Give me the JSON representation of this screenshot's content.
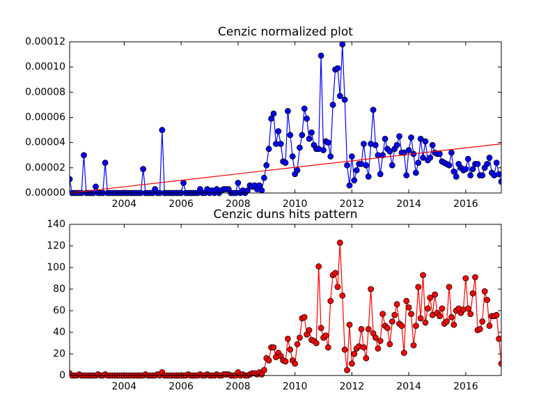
{
  "chart_data": [
    {
      "type": "line",
      "title": "Cenzic normalized plot",
      "x": [
        2002.083,
        2002.167,
        2002.25,
        2002.333,
        2002.417,
        2002.5,
        2002.583,
        2002.667,
        2002.75,
        2002.833,
        2002.917,
        2003,
        2003.083,
        2003.167,
        2003.25,
        2003.333,
        2003.417,
        2003.5,
        2003.583,
        2003.667,
        2003.75,
        2003.833,
        2003.917,
        2004,
        2004.083,
        2004.167,
        2004.25,
        2004.333,
        2004.417,
        2004.5,
        2004.583,
        2004.667,
        2004.75,
        2004.833,
        2004.917,
        2005,
        2005.083,
        2005.167,
        2005.25,
        2005.333,
        2005.417,
        2005.5,
        2005.583,
        2005.667,
        2005.75,
        2005.833,
        2005.917,
        2006,
        2006.083,
        2006.167,
        2006.25,
        2006.333,
        2006.417,
        2006.5,
        2006.583,
        2006.667,
        2006.75,
        2006.833,
        2006.917,
        2007,
        2007.083,
        2007.167,
        2007.25,
        2007.333,
        2007.417,
        2007.5,
        2007.583,
        2007.667,
        2007.75,
        2007.833,
        2007.917,
        2008,
        2008.083,
        2008.167,
        2008.25,
        2008.333,
        2008.417,
        2008.5,
        2008.583,
        2008.667,
        2008.75,
        2008.833,
        2008.917,
        2009,
        2009.083,
        2009.167,
        2009.25,
        2009.333,
        2009.417,
        2009.5,
        2009.583,
        2009.667,
        2009.75,
        2009.833,
        2009.917,
        2010,
        2010.083,
        2010.167,
        2010.25,
        2010.333,
        2010.417,
        2010.5,
        2010.583,
        2010.667,
        2010.75,
        2010.833,
        2010.917,
        2011,
        2011.083,
        2011.167,
        2011.25,
        2011.333,
        2011.417,
        2011.5,
        2011.583,
        2011.667,
        2011.75,
        2011.833,
        2011.917,
        2012,
        2012.083,
        2012.167,
        2012.25,
        2012.333,
        2012.417,
        2012.5,
        2012.583,
        2012.667,
        2012.75,
        2012.833,
        2012.917,
        2013,
        2013.083,
        2013.167,
        2013.25,
        2013.333,
        2013.417,
        2013.5,
        2013.583,
        2013.667,
        2013.75,
        2013.833,
        2013.917,
        2014,
        2014.083,
        2014.167,
        2014.25,
        2014.333,
        2014.417,
        2014.5,
        2014.583,
        2014.667,
        2014.75,
        2014.833,
        2014.917,
        2015,
        2015.083,
        2015.167,
        2015.25,
        2015.333,
        2015.417,
        2015.5,
        2015.583,
        2015.667,
        2015.75,
        2015.833,
        2015.917,
        2016,
        2016.083,
        2016.167,
        2016.25,
        2016.333,
        2016.417,
        2016.5,
        2016.583,
        2016.667,
        2016.75,
        2016.833,
        2016.917,
        2017,
        2017.083,
        2017.167,
        2017.25
      ],
      "series": [
        {
          "color": "#0000ff",
          "values": [
            1.1e-05,
            0,
            0,
            0,
            0,
            0,
            3e-05,
            0,
            0,
            0,
            0,
            5e-06,
            0,
            0,
            0,
            2.4e-05,
            0,
            0,
            0,
            0,
            0,
            0,
            0,
            0,
            0,
            0,
            0,
            0,
            0,
            0,
            0,
            1.9e-05,
            0,
            0,
            0,
            0,
            3e-06,
            0,
            0,
            5e-05,
            0,
            0,
            0,
            0,
            0,
            0,
            0,
            0,
            8e-06,
            0,
            0,
            0,
            0,
            0,
            0,
            3e-06,
            0,
            0,
            3e-06,
            0,
            2e-06,
            0,
            3e-06,
            0,
            2e-06,
            3e-06,
            3e-06,
            3e-06,
            0,
            0,
            0,
            8e-06,
            0,
            2e-06,
            0,
            2e-06,
            6e-06,
            5e-06,
            6e-06,
            3e-06,
            6e-06,
            2e-06,
            1.2e-05,
            2.2e-05,
            3.5e-05,
            5.9e-05,
            6.3e-05,
            3.9e-05,
            4.9e-05,
            3.9e-05,
            2.5e-05,
            2.4e-05,
            6.5e-05,
            4.6e-05,
            2.9e-05,
            1.5e-05,
            1.8e-05,
            3.6e-05,
            4.6e-05,
            6.7e-05,
            5.9e-05,
            4.3e-05,
            4.8e-05,
            3.8e-05,
            3.5e-05,
            3.5e-05,
            0.000109,
            3.4e-05,
            4.1e-05,
            4e-05,
            2.9e-05,
            7e-05,
            9.8e-05,
            9.9e-05,
            7.7e-05,
            0.000118,
            7.4e-05,
            2.2e-05,
            6e-06,
            2.9e-05,
            1e-05,
            1.8e-05,
            2.3e-05,
            2.3e-05,
            3.9e-05,
            2.2e-05,
            1.3e-05,
            3.9e-05,
            6.6e-05,
            3.8e-05,
            3e-05,
            1.5e-05,
            3e-05,
            4.3e-05,
            3.5e-05,
            3.3e-05,
            2.2e-05,
            3.5e-05,
            3.8e-05,
            4.5e-05,
            3.2e-05,
            3.2e-05,
            1.4e-05,
            3.4e-05,
            4.4e-05,
            3.1e-05,
            1.6e-05,
            2.4e-05,
            4.3e-05,
            2.8e-05,
            4.1e-05,
            2.6e-05,
            2.8e-05,
            3.8e-05,
            3.2e-05,
            3.1e-05,
            3.1e-05,
            2.5e-05,
            2.4e-05,
            2.3e-05,
            2.2e-05,
            3.2e-05,
            1.7e-05,
            1.3e-05,
            2.3e-05,
            2e-05,
            1.8e-05,
            1.9e-05,
            2.7e-05,
            1.4e-05,
            1.9e-05,
            2.3e-05,
            2.3e-05,
            1.4e-05,
            1.4e-05,
            2e-05,
            2.3e-05,
            2.8e-05,
            1.6e-05,
            1.4e-05,
            2.4e-05,
            1.5e-05,
            9e-06
          ]
        }
      ],
      "trend": {
        "color": "#ff0000",
        "x": [
          2002.083,
          2017.25
        ],
        "values": [
          0,
          3.9e-05
        ]
      },
      "xlim": [
        2002.083,
        2017.25
      ],
      "xticks": [
        2004,
        2006,
        2008,
        2010,
        2012,
        2014,
        2016
      ],
      "ylim": [
        0,
        0.00012
      ],
      "yticks": [
        {
          "value": 0,
          "label": "0.00000"
        },
        {
          "value": 2e-05,
          "label": "0.00002"
        },
        {
          "value": 4e-05,
          "label": "0.00004"
        },
        {
          "value": 6e-05,
          "label": "0.00006"
        },
        {
          "value": 8e-05,
          "label": "0.00008"
        },
        {
          "value": 0.0001,
          "label": "0.00010"
        },
        {
          "value": 0.00012,
          "label": "0.00012"
        }
      ]
    },
    {
      "type": "line",
      "title": "Cenzic duns hits pattern",
      "x": [
        2002.083,
        2002.167,
        2002.25,
        2002.333,
        2002.417,
        2002.5,
        2002.583,
        2002.667,
        2002.75,
        2002.833,
        2002.917,
        2003,
        2003.083,
        2003.167,
        2003.25,
        2003.333,
        2003.417,
        2003.5,
        2003.583,
        2003.667,
        2003.75,
        2003.833,
        2003.917,
        2004,
        2004.083,
        2004.167,
        2004.25,
        2004.333,
        2004.417,
        2004.5,
        2004.583,
        2004.667,
        2004.75,
        2004.833,
        2004.917,
        2005,
        2005.083,
        2005.167,
        2005.25,
        2005.333,
        2005.417,
        2005.5,
        2005.583,
        2005.667,
        2005.75,
        2005.833,
        2005.917,
        2006,
        2006.083,
        2006.167,
        2006.25,
        2006.333,
        2006.417,
        2006.5,
        2006.583,
        2006.667,
        2006.75,
        2006.833,
        2006.917,
        2007,
        2007.083,
        2007.167,
        2007.25,
        2007.333,
        2007.417,
        2007.5,
        2007.583,
        2007.667,
        2007.75,
        2007.833,
        2007.917,
        2008,
        2008.083,
        2008.167,
        2008.25,
        2008.333,
        2008.417,
        2008.5,
        2008.583,
        2008.667,
        2008.75,
        2008.833,
        2008.917,
        2009,
        2009.083,
        2009.167,
        2009.25,
        2009.333,
        2009.417,
        2009.5,
        2009.583,
        2009.667,
        2009.75,
        2009.833,
        2009.917,
        2010,
        2010.083,
        2010.167,
        2010.25,
        2010.333,
        2010.417,
        2010.5,
        2010.583,
        2010.667,
        2010.75,
        2010.833,
        2010.917,
        2011,
        2011.083,
        2011.167,
        2011.25,
        2011.333,
        2011.417,
        2011.5,
        2011.583,
        2011.667,
        2011.75,
        2011.833,
        2011.917,
        2012,
        2012.083,
        2012.167,
        2012.25,
        2012.333,
        2012.417,
        2012.5,
        2012.583,
        2012.667,
        2012.75,
        2012.833,
        2012.917,
        2013,
        2013.083,
        2013.167,
        2013.25,
        2013.333,
        2013.417,
        2013.5,
        2013.583,
        2013.667,
        2013.75,
        2013.833,
        2013.917,
        2014,
        2014.083,
        2014.167,
        2014.25,
        2014.333,
        2014.417,
        2014.5,
        2014.583,
        2014.667,
        2014.75,
        2014.833,
        2014.917,
        2015,
        2015.083,
        2015.167,
        2015.25,
        2015.333,
        2015.417,
        2015.5,
        2015.583,
        2015.667,
        2015.75,
        2015.833,
        2015.917,
        2016,
        2016.083,
        2016.167,
        2016.25,
        2016.333,
        2016.417,
        2016.5,
        2016.583,
        2016.667,
        2016.75,
        2016.833,
        2016.917,
        2017,
        2017.083,
        2017.167,
        2017.25
      ],
      "series": [
        {
          "color": "#ff0000",
          "values": [
            2,
            0,
            0,
            0,
            1,
            0,
            0,
            0,
            0,
            0,
            0,
            0,
            1,
            0,
            0,
            1,
            0,
            0,
            0,
            0,
            0,
            0,
            0,
            0,
            0,
            0,
            0,
            0,
            0,
            0,
            0,
            0,
            1,
            0,
            0,
            0,
            0,
            1,
            0,
            3,
            0,
            0,
            0,
            0,
            0,
            0,
            0,
            0,
            0,
            0,
            1,
            0,
            0,
            0,
            0,
            1,
            0,
            0,
            1,
            0,
            0,
            0,
            1,
            0,
            0,
            1,
            1,
            1,
            0,
            0,
            0,
            3,
            0,
            1,
            0,
            0,
            1,
            2,
            2,
            1,
            3,
            1,
            5,
            16,
            14,
            26,
            26,
            17,
            21,
            18,
            14,
            13,
            34,
            24,
            14,
            11,
            29,
            35,
            53,
            54,
            38,
            42,
            33,
            32,
            30,
            101,
            44,
            35,
            37,
            26,
            69,
            93,
            95,
            82,
            123,
            74,
            24,
            5,
            47,
            11,
            20,
            25,
            27,
            43,
            26,
            16,
            43,
            80,
            39,
            35,
            25,
            32,
            57,
            46,
            44,
            29,
            50,
            56,
            66,
            48,
            46,
            21,
            69,
            63,
            57,
            28,
            46,
            82,
            53,
            93,
            49,
            62,
            72,
            56,
            75,
            58,
            55,
            62,
            48,
            50,
            82,
            54,
            47,
            60,
            62,
            58,
            61,
            90,
            62,
            57,
            76,
            91,
            42,
            43,
            50,
            78,
            70,
            46,
            55,
            55,
            56,
            34,
            11
          ]
        }
      ],
      "xlim": [
        2002.083,
        2017.25
      ],
      "xticks": [
        2004,
        2006,
        2008,
        2010,
        2012,
        2014,
        2016
      ],
      "ylim": [
        0,
        140
      ],
      "yticks": [
        0,
        20,
        40,
        60,
        80,
        100,
        120,
        140
      ]
    }
  ]
}
